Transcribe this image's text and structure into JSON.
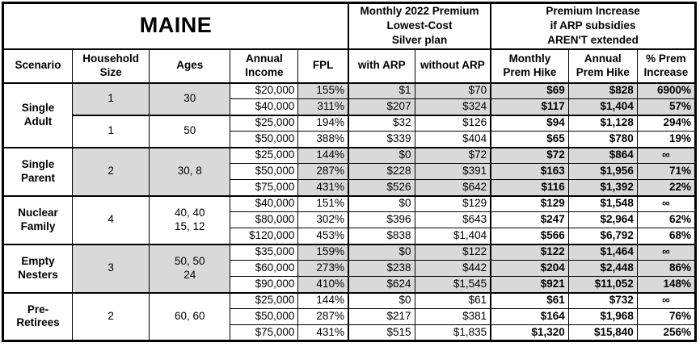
{
  "table": {
    "title": "MAINE",
    "section_premium": "Monthly 2022 Premium\nLowest-Cost\nSilver plan",
    "section_increase": "Premium Increase\nif ARP subsidies\nAREN'T extended",
    "columns": [
      "Scenario",
      "Household\nSize",
      "Ages",
      "Annual\nIncome",
      "FPL",
      "with ARP",
      "without ARP",
      "Monthly\nPrem Hike",
      "Annual\nPrem Hike",
      "% Prem\nIncrease"
    ],
    "colors": {
      "shaded_bg": "#d9d9d9",
      "border": "#000000",
      "background": "#ffffff"
    },
    "groups": [
      {
        "scenario": "Single\nAdult",
        "subgroups": [
          {
            "household_size": "1",
            "ages": "30",
            "shaded": true,
            "rows": [
              [
                "$20,000",
                "155%",
                "$1",
                "$70",
                "$69",
                "$828",
                "6900%"
              ],
              [
                "$40,000",
                "311%",
                "$207",
                "$324",
                "$117",
                "$1,404",
                "57%"
              ]
            ]
          },
          {
            "household_size": "1",
            "ages": "50",
            "shaded": false,
            "rows": [
              [
                "$25,000",
                "194%",
                "$32",
                "$126",
                "$94",
                "$1,128",
                "294%"
              ],
              [
                "$50,000",
                "388%",
                "$339",
                "$404",
                "$65",
                "$780",
                "19%"
              ]
            ]
          }
        ]
      },
      {
        "scenario": "Single\nParent",
        "subgroups": [
          {
            "household_size": "2",
            "ages": "30, 8",
            "shaded": true,
            "rows": [
              [
                "$25,000",
                "144%",
                "$0",
                "$72",
                "$72",
                "$864",
                "∞"
              ],
              [
                "$50,000",
                "287%",
                "$228",
                "$391",
                "$163",
                "$1,956",
                "71%"
              ],
              [
                "$75,000",
                "431%",
                "$526",
                "$642",
                "$116",
                "$1,392",
                "22%"
              ]
            ]
          }
        ]
      },
      {
        "scenario": "Nuclear\nFamily",
        "subgroups": [
          {
            "household_size": "4",
            "ages": "40, 40\n15, 12",
            "shaded": false,
            "rows": [
              [
                "$40,000",
                "151%",
                "$0",
                "$129",
                "$129",
                "$1,548",
                "∞"
              ],
              [
                "$80,000",
                "302%",
                "$396",
                "$643",
                "$247",
                "$2,964",
                "62%"
              ],
              [
                "$120,000",
                "453%",
                "$838",
                "$1,404",
                "$566",
                "$6,792",
                "68%"
              ]
            ]
          }
        ]
      },
      {
        "scenario": "Empty\nNesters",
        "subgroups": [
          {
            "household_size": "3",
            "ages": "50, 50\n24",
            "shaded": true,
            "rows": [
              [
                "$35,000",
                "159%",
                "$0",
                "$122",
                "$122",
                "$1,464",
                "∞"
              ],
              [
                "$60,000",
                "273%",
                "$238",
                "$442",
                "$204",
                "$2,448",
                "86%"
              ],
              [
                "$90,000",
                "410%",
                "$624",
                "$1,545",
                "$921",
                "$11,052",
                "148%"
              ]
            ]
          }
        ]
      },
      {
        "scenario": "Pre-\nRetirees",
        "subgroups": [
          {
            "household_size": "2",
            "ages": "60, 60",
            "shaded": false,
            "rows": [
              [
                "$25,000",
                "144%",
                "$0",
                "$61",
                "$61",
                "$732",
                "∞"
              ],
              [
                "$50,000",
                "287%",
                "$217",
                "$381",
                "$164",
                "$1,968",
                "76%"
              ],
              [
                "$75,000",
                "431%",
                "$515",
                "$1,835",
                "$1,320",
                "$15,840",
                "256%"
              ]
            ]
          }
        ]
      }
    ]
  }
}
